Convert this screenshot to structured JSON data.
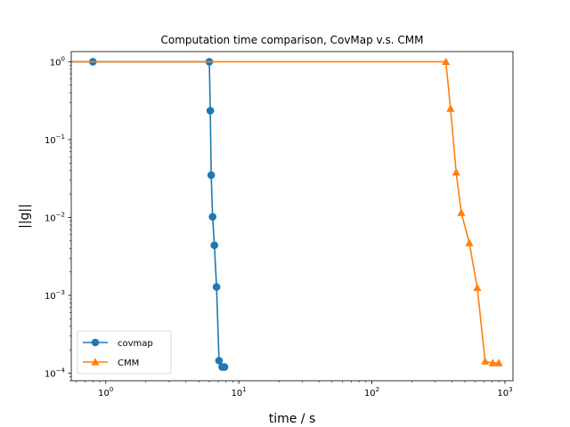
{
  "chart_data": {
    "type": "line",
    "title": "Computation time comparison, CovMap v.s. CMM",
    "xlabel": "time / s",
    "ylabel": "||g||",
    "xscale": "log",
    "yscale": "log",
    "xlim": [
      0.55,
      1150
    ],
    "ylim": [
      8e-05,
      1.35
    ],
    "x_ticks": [
      {
        "value": 1,
        "base": "10",
        "exp": "0"
      },
      {
        "value": 10,
        "base": "10",
        "exp": "1"
      },
      {
        "value": 100,
        "base": "10",
        "exp": "2"
      },
      {
        "value": 1000,
        "base": "10",
        "exp": "3"
      }
    ],
    "y_ticks": [
      {
        "value": 1,
        "base": "10",
        "exp": "0"
      },
      {
        "value": 0.1,
        "base": "10",
        "exp": "−1"
      },
      {
        "value": 0.01,
        "base": "10",
        "exp": "−2"
      },
      {
        "value": 0.001,
        "base": "10",
        "exp": "−3"
      },
      {
        "value": 0.0001,
        "base": "10",
        "exp": "−4"
      }
    ],
    "grid": false,
    "legend_position": "lower-left",
    "series": [
      {
        "name": "covmap",
        "color": "#1f77b4",
        "marker": "circle",
        "points": [
          [
            0.25,
            1.0
          ],
          [
            0.8,
            1.0
          ],
          [
            6.0,
            1.0
          ],
          [
            6.1,
            0.235
          ],
          [
            6.2,
            0.035
          ],
          [
            6.35,
            0.0102
          ],
          [
            6.55,
            0.0044
          ],
          [
            6.8,
            0.00128
          ],
          [
            7.1,
            0.000145
          ],
          [
            7.5,
            0.00012
          ],
          [
            7.8,
            0.00012
          ]
        ]
      },
      {
        "name": "CMM",
        "color": "#ff7f0e",
        "marker": "triangle",
        "points": [
          [
            0.25,
            1.0
          ],
          [
            360,
            1.0
          ],
          [
            390,
            0.25
          ],
          [
            430,
            0.038
          ],
          [
            470,
            0.0115
          ],
          [
            540,
            0.0047
          ],
          [
            620,
            0.00125
          ],
          [
            710,
            0.000142
          ],
          [
            810,
            0.000135
          ],
          [
            900,
            0.000135
          ]
        ]
      }
    ]
  }
}
